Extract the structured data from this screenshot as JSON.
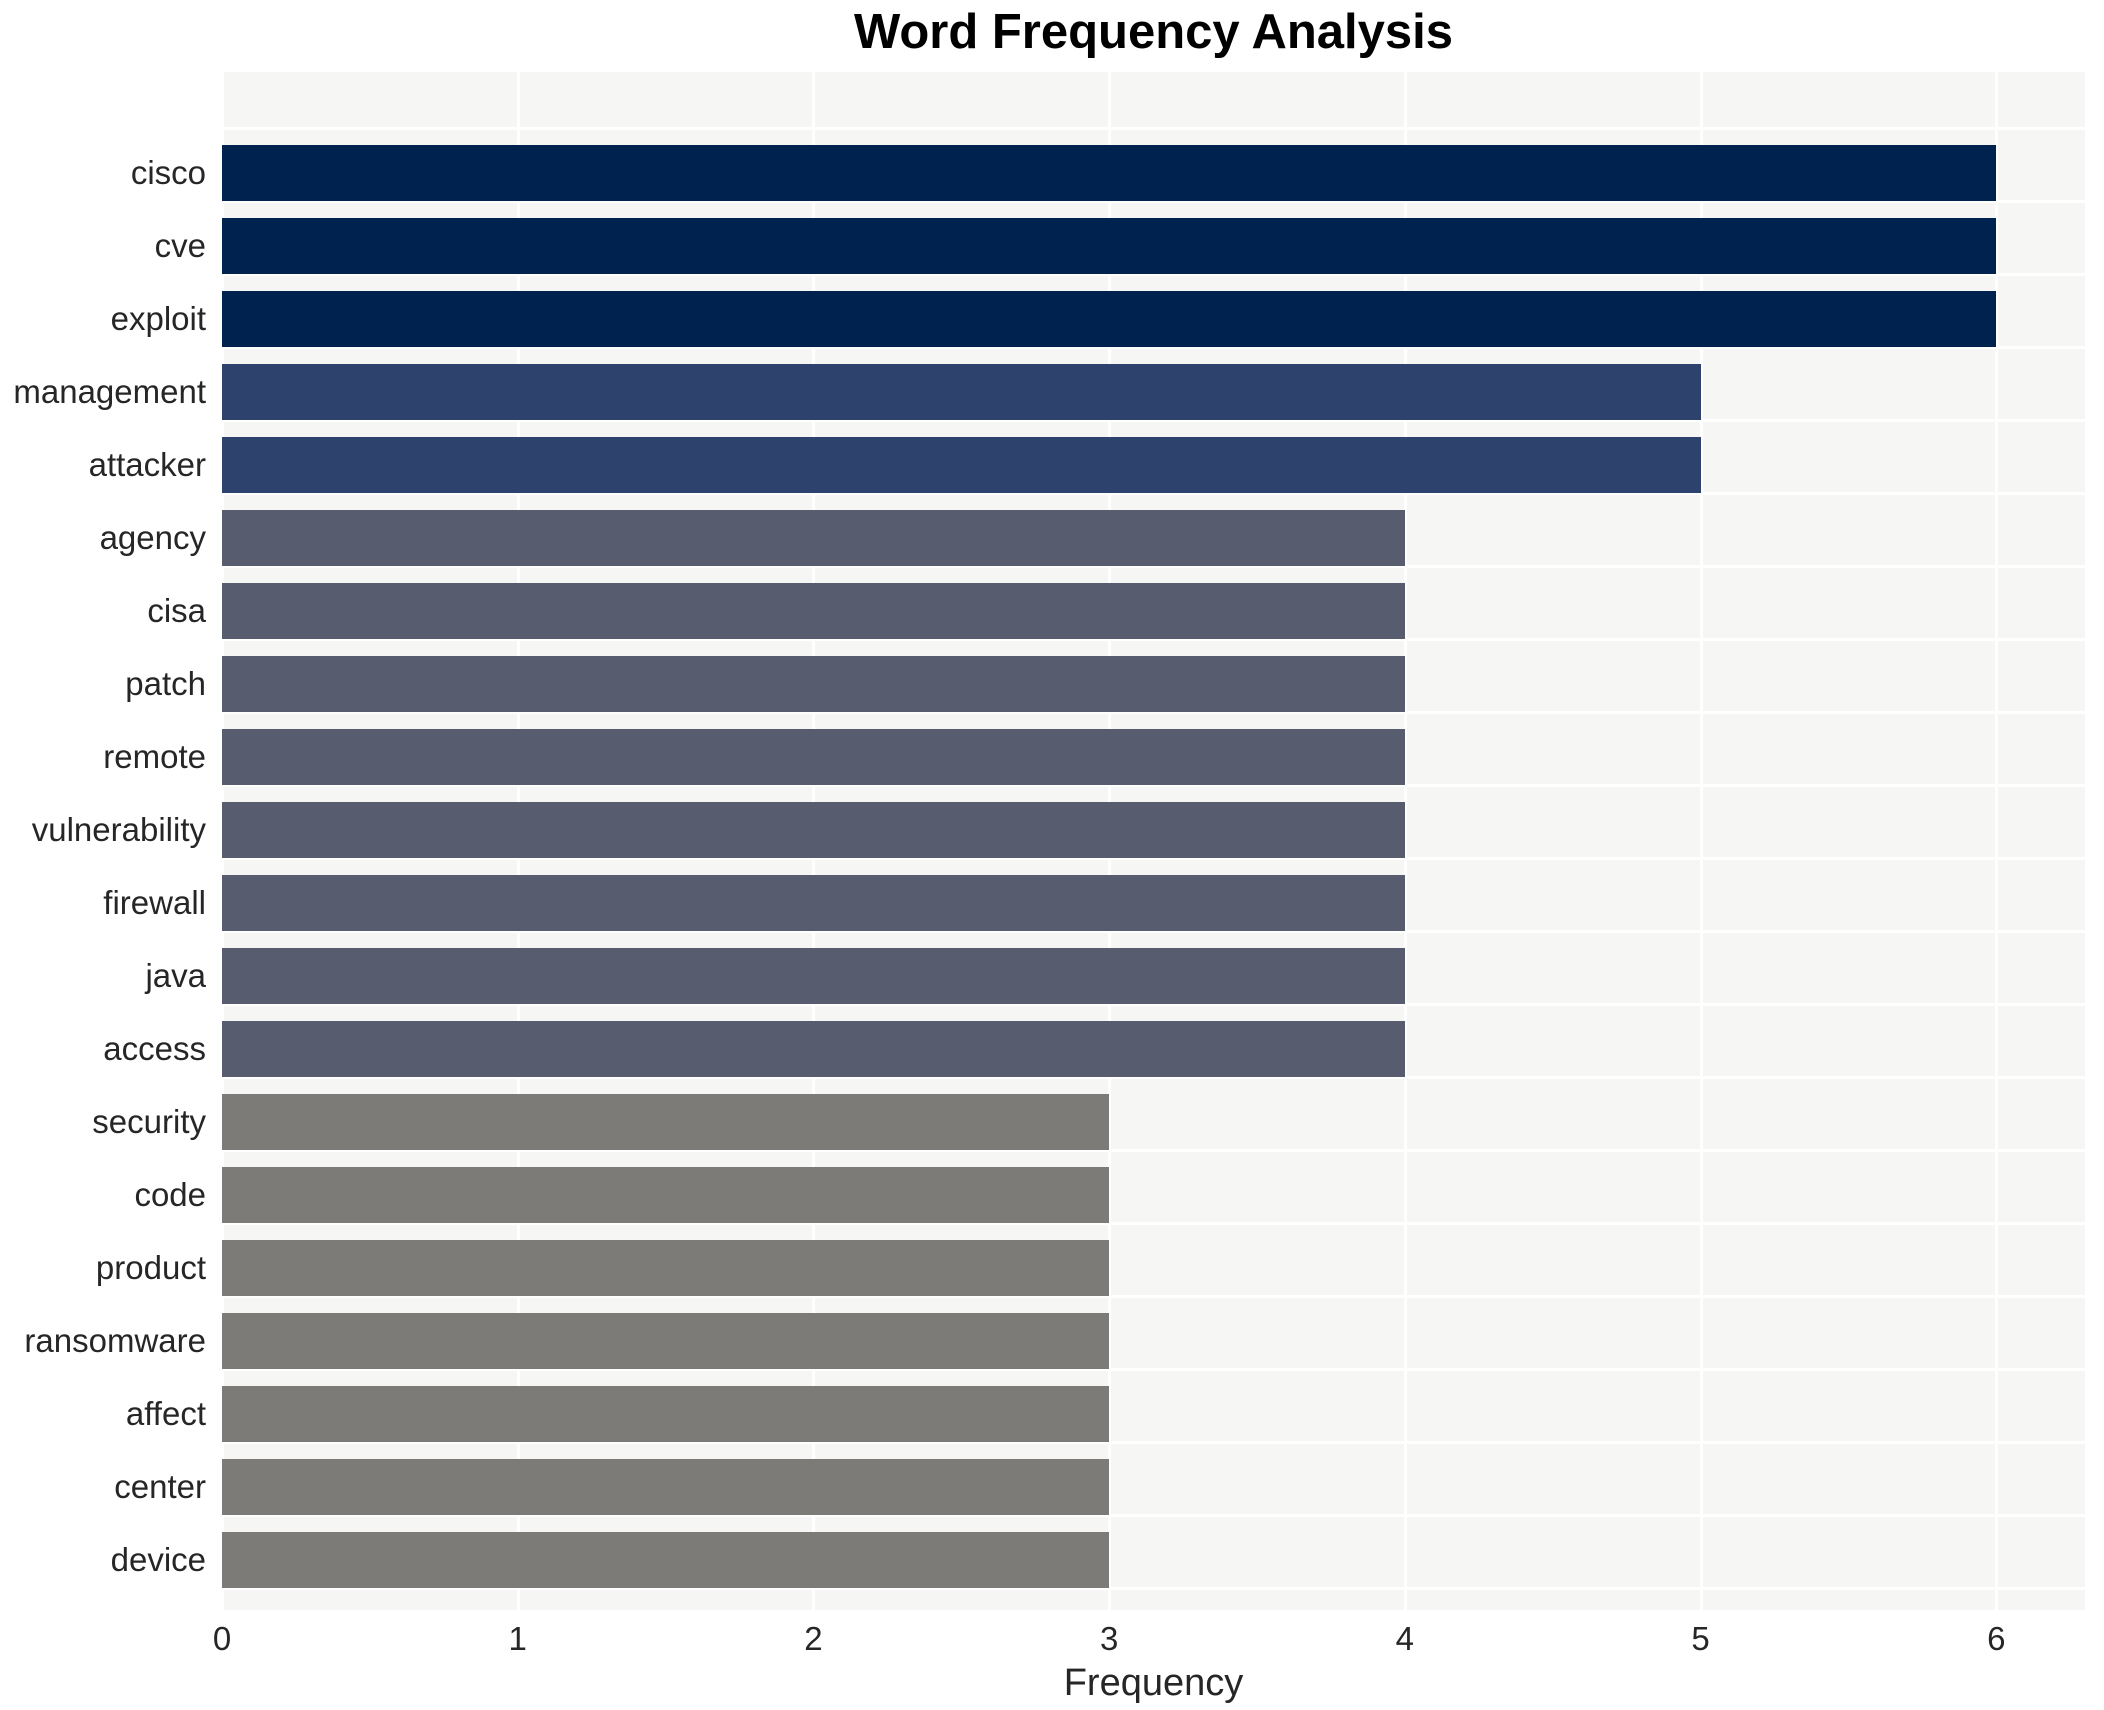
{
  "chart_data": {
    "type": "bar",
    "orientation": "horizontal",
    "title": "Word Frequency Analysis",
    "xlabel": "Frequency",
    "ylabel": "",
    "categories": [
      "cisco",
      "cve",
      "exploit",
      "management",
      "attacker",
      "agency",
      "cisa",
      "patch",
      "remote",
      "vulnerability",
      "firewall",
      "java",
      "access",
      "security",
      "code",
      "product",
      "ransomware",
      "affect",
      "center",
      "device"
    ],
    "values": [
      6,
      6,
      6,
      5,
      5,
      4,
      4,
      4,
      4,
      4,
      4,
      4,
      4,
      3,
      3,
      3,
      3,
      3,
      3,
      3
    ],
    "xticks": [
      0,
      1,
      2,
      3,
      4,
      5,
      6
    ],
    "xlim": [
      0,
      6.3
    ],
    "grid": true,
    "legend": false,
    "gridline_color": "#ffffff",
    "plot_background": "#f6f6f4",
    "page_background": "#ffffff",
    "text_color": "#262626",
    "title_color": "#000000",
    "colors_by_value": {
      "6": "#00224e",
      "5": "#2d426d",
      "4": "#575d6f",
      "3": "#7c7b77"
    }
  }
}
